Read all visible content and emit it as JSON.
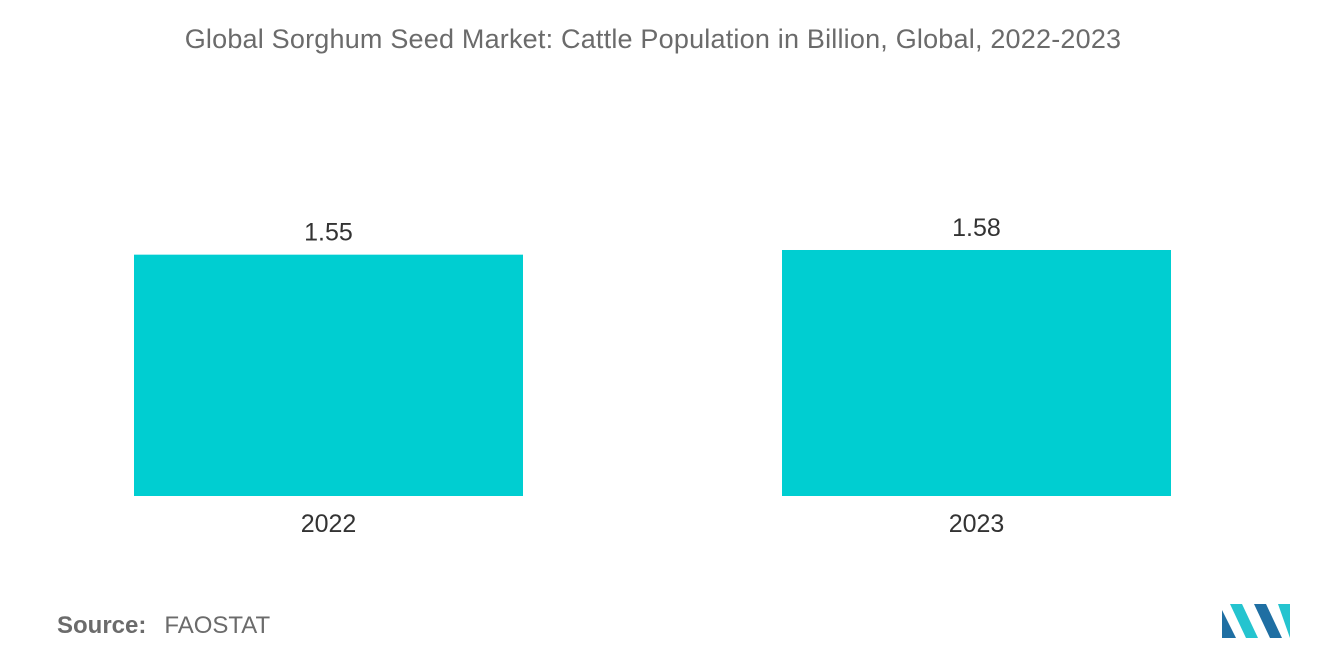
{
  "chart_data": {
    "type": "bar",
    "title": "Global Sorghum Seed Market: Cattle Population in Billion, Global, 2022-2023",
    "categories": [
      "2022",
      "2023"
    ],
    "values": [
      1.55,
      1.58
    ],
    "value_labels": [
      "1.55",
      "1.58"
    ],
    "xlabel": "",
    "ylabel": "",
    "ylim": [
      0,
      1.6
    ],
    "grid": false,
    "legend": "none",
    "bar_color": "#00CED1"
  },
  "source": {
    "label": "Source:",
    "value": "FAOSTAT"
  },
  "logo": {
    "icon": "mordor-intelligence-logo-icon",
    "colors": [
      "#1f6fa3",
      "#25c4cf"
    ]
  }
}
